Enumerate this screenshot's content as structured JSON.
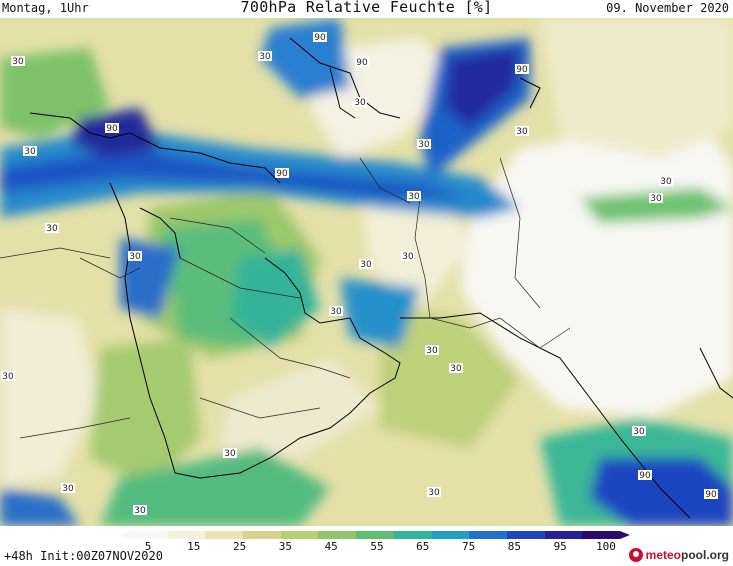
{
  "header": {
    "left": "Montag, 1Uhr",
    "title": "700hPa Relative Feuchte [%]",
    "right": "09. November 2020"
  },
  "footer": {
    "run": "+48h Init:00Z07NOV2020",
    "brand_primary": "meteo",
    "brand_secondary": "pool.org"
  },
  "colorbar": {
    "tick_labels": [
      "5",
      "15",
      "25",
      "35",
      "45",
      "55",
      "65",
      "75",
      "85",
      "95",
      "100"
    ],
    "colors": [
      "#f7f7f7",
      "#f5f2dc",
      "#e9e4b2",
      "#d6d48c",
      "#b7cf73",
      "#8fc668",
      "#5fbe73",
      "#30b59c",
      "#239ec9",
      "#1f73cf",
      "#1f45c0",
      "#23209a",
      "#2a0a6e"
    ]
  },
  "contour_labels": [
    "30",
    "90"
  ],
  "map_layers": {
    "coastline_color": "#000000",
    "border_color": "#222222"
  }
}
